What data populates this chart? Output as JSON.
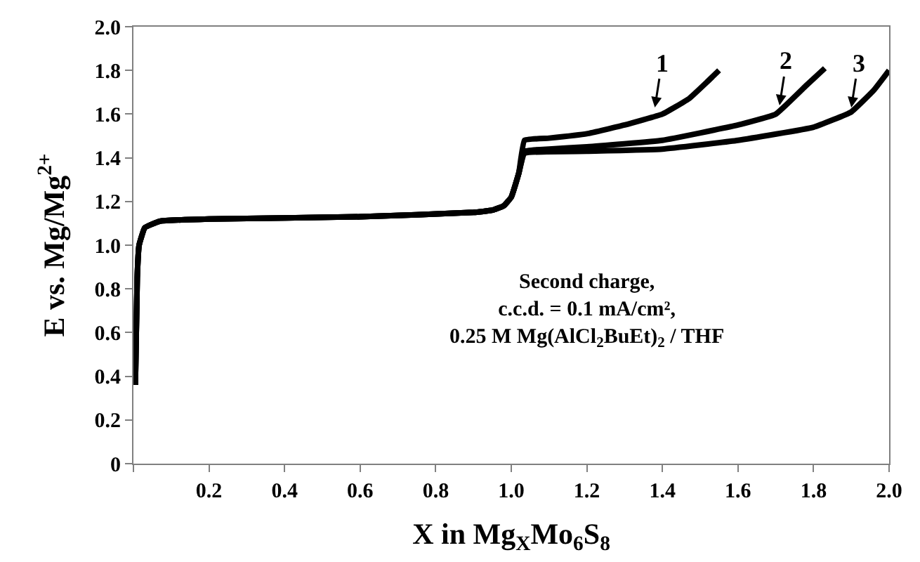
{
  "chart_data": {
    "type": "line",
    "xlabel": "X in Mg$_{X}$Mo$_{6}$S$_{8}$",
    "ylabel": "E vs. Mg/Mg$^{2+}$",
    "xlim": [
      0,
      2.0
    ],
    "ylim": [
      0,
      2.0
    ],
    "xticks": [
      {
        "value": 0,
        "label": null
      },
      0.2,
      0.4,
      0.6,
      0.8,
      {
        "value": 1.0,
        "label": "1.0"
      },
      1.2,
      1.4,
      1.6,
      1.8,
      {
        "value": 2.0,
        "label": "2.0"
      }
    ],
    "yticks": [
      0,
      0.2,
      0.4,
      0.6,
      0.8,
      {
        "value": 1.0,
        "label": "1.0"
      },
      1.2,
      1.4,
      1.6,
      1.8,
      {
        "value": 2.0,
        "label": "2.0"
      }
    ],
    "marker": "none",
    "line_style": "solid",
    "series": [
      {
        "color": "#000000",
        "x": [
          0.005,
          0.01,
          0.015,
          0.03,
          0.07,
          0.2,
          0.6,
          0.9,
          0.95,
          0.98,
          1.0,
          1.02,
          1.035,
          1.1,
          1.2,
          1.3,
          1.4,
          1.47,
          1.52,
          1.55
        ],
        "values": [
          0.36,
          0.85,
          1.0,
          1.08,
          1.11,
          1.12,
          1.13,
          1.15,
          1.16,
          1.18,
          1.22,
          1.33,
          1.48,
          1.49,
          1.51,
          1.55,
          1.6,
          1.67,
          1.75,
          1.8
        ]
      },
      {
        "color": "#000000",
        "x": [
          0.005,
          0.01,
          0.015,
          0.03,
          0.07,
          0.2,
          0.6,
          0.9,
          0.95,
          0.98,
          1.0,
          1.02,
          1.035,
          1.1,
          1.2,
          1.4,
          1.6,
          1.7,
          1.78,
          1.83
        ],
        "values": [
          0.36,
          0.85,
          1.0,
          1.08,
          1.11,
          1.12,
          1.13,
          1.15,
          1.16,
          1.18,
          1.22,
          1.33,
          1.43,
          1.44,
          1.45,
          1.48,
          1.55,
          1.6,
          1.73,
          1.81
        ]
      },
      {
        "color": "#000000",
        "x": [
          0.005,
          0.01,
          0.015,
          0.03,
          0.07,
          0.2,
          0.6,
          0.9,
          0.95,
          0.98,
          1.0,
          1.02,
          1.035,
          1.2,
          1.4,
          1.6,
          1.8,
          1.9,
          1.96,
          2.0
        ],
        "values": [
          0.36,
          0.85,
          1.0,
          1.08,
          1.11,
          1.12,
          1.13,
          1.15,
          1.16,
          1.18,
          1.22,
          1.33,
          1.42,
          1.43,
          1.44,
          1.48,
          1.54,
          1.61,
          1.71,
          1.8
        ]
      }
    ],
    "annotations": [
      {
        "text": "1",
        "x": 1.38,
        "y": 1.63
      },
      {
        "text": "2",
        "x": 1.71,
        "y": 1.64
      },
      {
        "text": "3",
        "x": 1.9,
        "y": 1.63
      },
      "Second charge,\nc.c.d. = 0.1 mA/cm²,\n0.25 M Mg(AlCl$_{2}$BuEt)$_{2}$ / THF"
    ]
  }
}
